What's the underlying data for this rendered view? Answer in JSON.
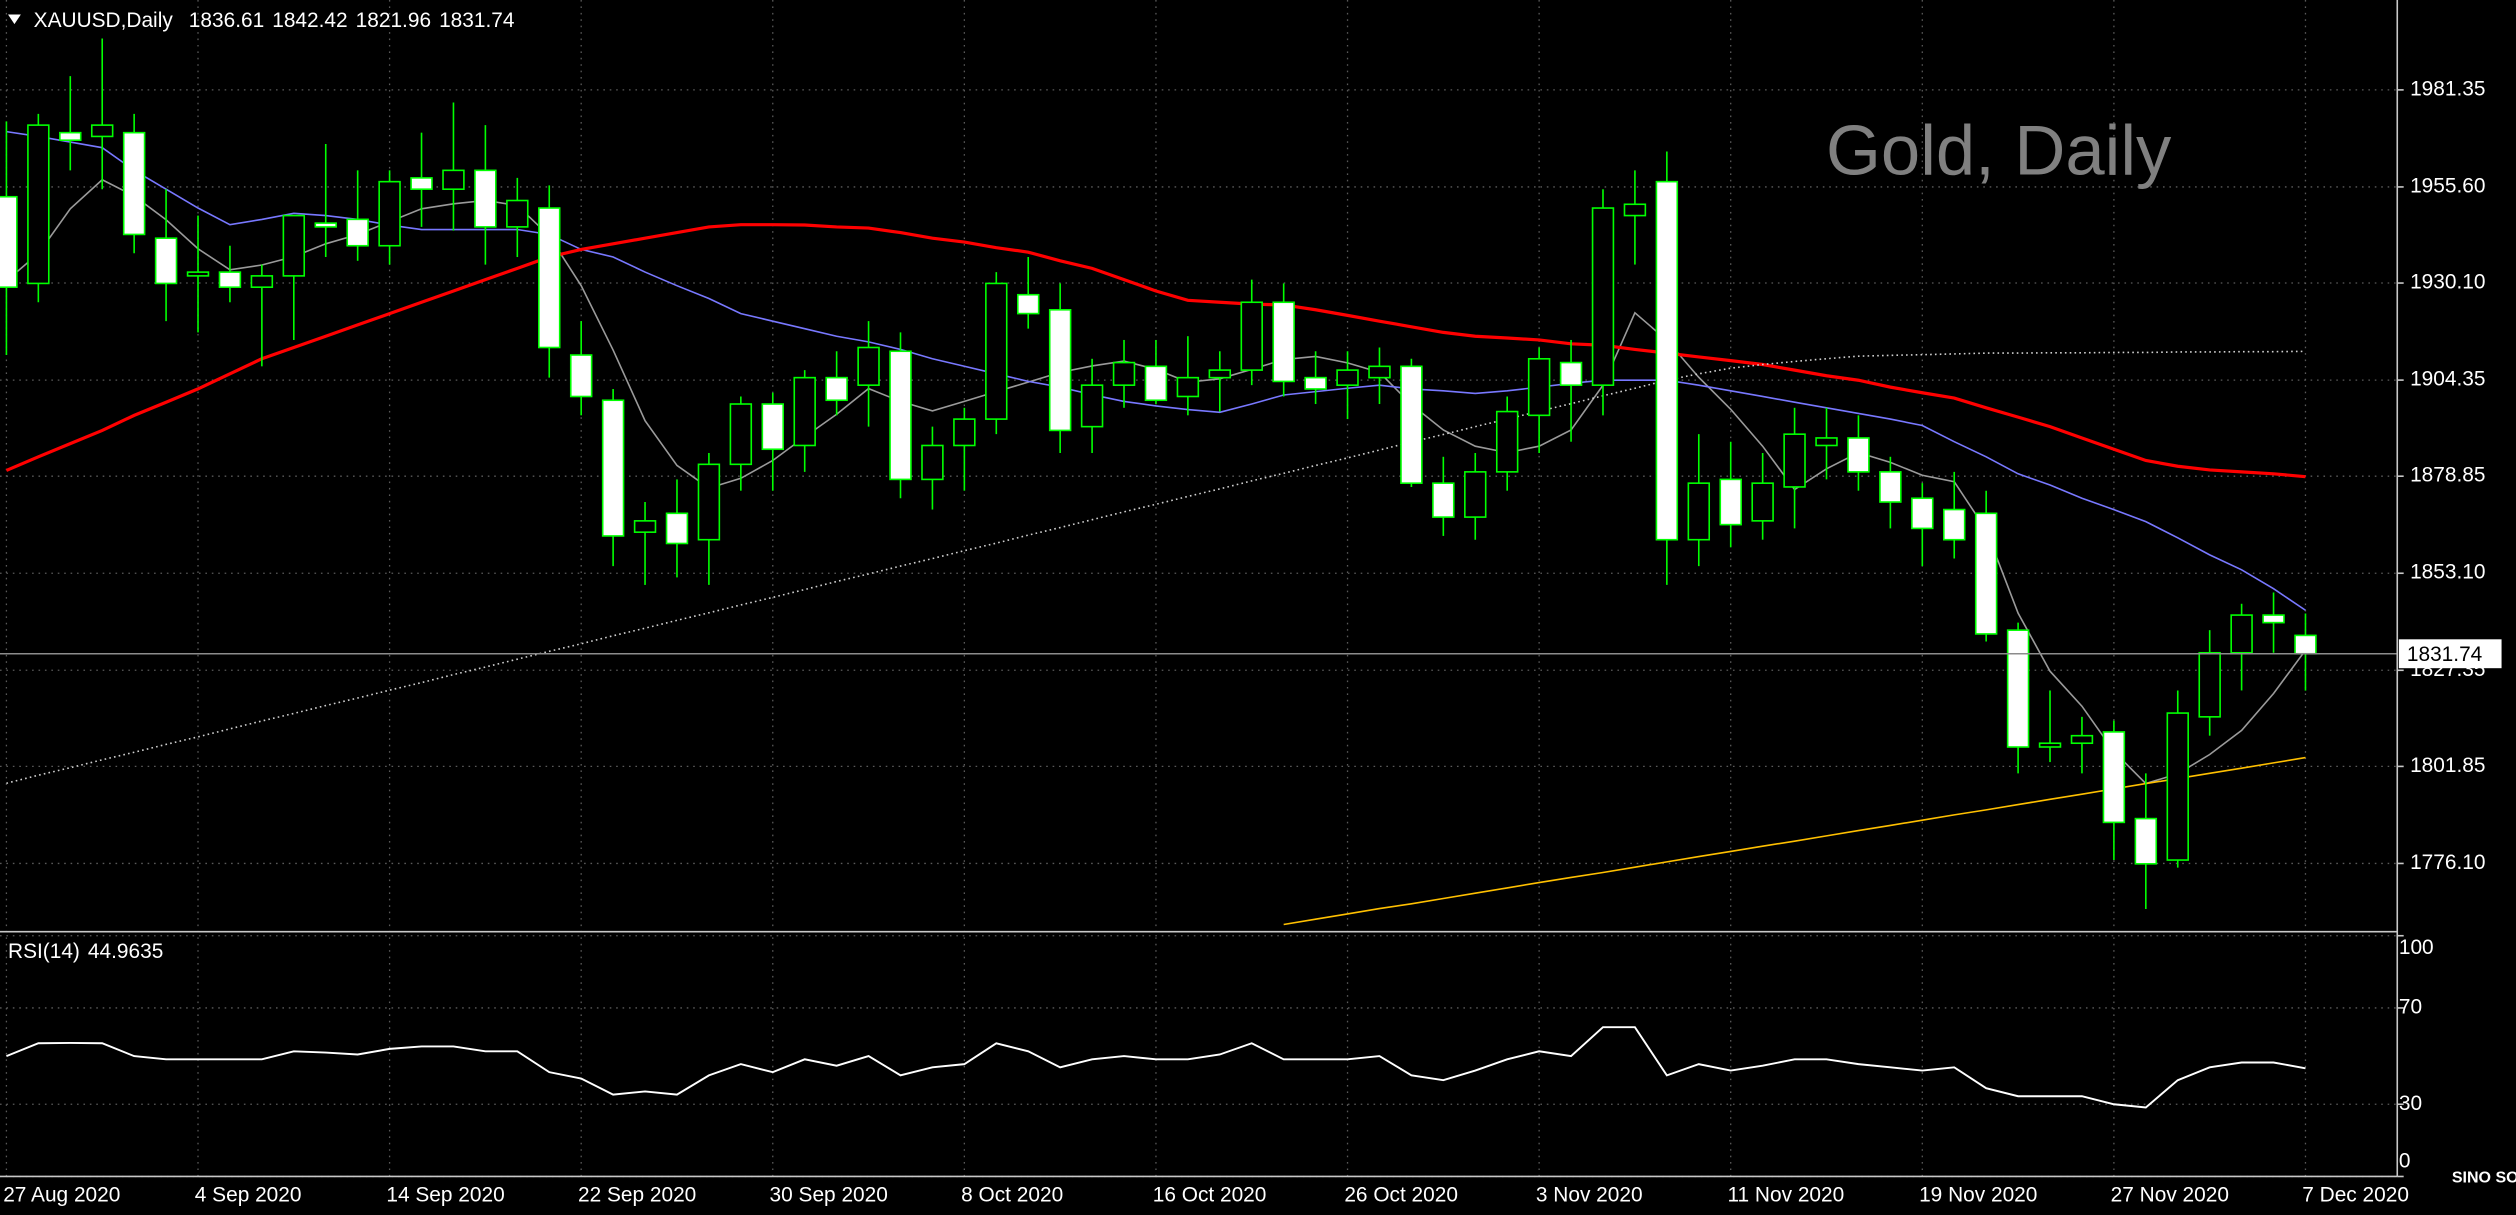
{
  "chart_data": [
    {
      "type": "candlestick",
      "title": "XAUUSD,Daily",
      "watermark": "Gold, Daily",
      "categories": [
        "27 Aug 2020",
        null,
        null,
        null,
        null,
        null,
        "4 Sep 2020",
        null,
        null,
        null,
        null,
        null,
        "14 Sep 2020",
        null,
        null,
        null,
        null,
        null,
        "22 Sep 2020",
        null,
        null,
        null,
        null,
        null,
        "30 Sep 2020",
        null,
        null,
        null,
        null,
        null,
        "8 Oct 2020",
        null,
        null,
        null,
        null,
        null,
        "16 Oct 2020",
        null,
        null,
        null,
        null,
        null,
        "26 Oct 2020",
        null,
        null,
        null,
        null,
        null,
        "3 Nov 2020",
        null,
        null,
        null,
        null,
        null,
        "11 Nov 2020",
        null,
        null,
        null,
        null,
        null,
        "19 Nov 2020",
        null,
        null,
        null,
        null,
        null,
        "27 Nov 2020",
        null,
        null,
        null,
        null,
        null,
        "7 Dec 2020"
      ],
      "open": [
        1953,
        1930,
        1970,
        1969,
        1970,
        1942,
        1932,
        1933,
        1929,
        1932,
        1946,
        1947,
        1940,
        1958,
        1955,
        1960,
        1945,
        1950,
        1911,
        1899,
        1864,
        1869,
        1862,
        1882,
        1898,
        1887,
        1905,
        1903,
        1912,
        1878,
        1887,
        1894,
        1927,
        1923,
        1892,
        1903,
        1908,
        1900,
        1905,
        1907,
        1925,
        1905,
        1903,
        1905,
        1908,
        1877,
        1868,
        1880,
        1895,
        1909,
        1903,
        1948,
        1957,
        1862,
        1878,
        1867,
        1876,
        1887,
        1889,
        1880,
        1873,
        1870,
        1869,
        1838,
        1807,
        1808,
        1811,
        1788,
        1777,
        1815,
        1832,
        1842,
        1836.61
      ],
      "high": [
        1973,
        1975,
        1985,
        1995,
        1975,
        1955,
        1948,
        1940,
        1935,
        1948,
        1967,
        1960,
        1960,
        1970,
        1978,
        1972,
        1958,
        1956,
        1920,
        1902,
        1872,
        1878,
        1885,
        1900,
        1901,
        1907,
        1912,
        1920,
        1917,
        1892,
        1897,
        1933,
        1937,
        1930,
        1910,
        1915,
        1915,
        1916,
        1912,
        1931,
        1930,
        1912,
        1912,
        1913,
        1910,
        1884,
        1885,
        1900,
        1913,
        1915,
        1955,
        1960,
        1965,
        1890,
        1888,
        1885,
        1897,
        1897,
        1895,
        1884,
        1877,
        1880,
        1875,
        1840,
        1822,
        1815,
        1814,
        1800,
        1822,
        1838,
        1845,
        1848,
        1842.42
      ],
      "low": [
        1911,
        1925,
        1960,
        1955,
        1938,
        1920,
        1917,
        1925,
        1908,
        1915,
        1937,
        1936,
        1935,
        1945,
        1944,
        1935,
        1937,
        1905,
        1895,
        1855,
        1850,
        1852,
        1850,
        1875,
        1875,
        1880,
        1895,
        1892,
        1873,
        1870,
        1875,
        1890,
        1918,
        1885,
        1885,
        1897,
        1898,
        1895,
        1896,
        1903,
        1900,
        1898,
        1894,
        1898,
        1876,
        1863,
        1862,
        1875,
        1885,
        1888,
        1895,
        1935,
        1850,
        1855,
        1860,
        1862,
        1865,
        1878,
        1875,
        1865,
        1855,
        1857,
        1835,
        1800,
        1803,
        1800,
        1777,
        1764,
        1775,
        1810,
        1822,
        1832,
        1821.96
      ],
      "close": [
        1929,
        1972,
        1968,
        1972,
        1943,
        1930,
        1933,
        1929,
        1932,
        1948,
        1945,
        1940,
        1957,
        1955,
        1960,
        1945,
        1952,
        1913,
        1900,
        1863,
        1867,
        1861,
        1882,
        1898,
        1886,
        1905,
        1899,
        1913,
        1878,
        1887,
        1894,
        1930,
        1922,
        1891,
        1903,
        1909,
        1899,
        1905,
        1907,
        1925,
        1904,
        1902,
        1907,
        1908,
        1877,
        1868,
        1880,
        1896,
        1910,
        1903,
        1950,
        1951,
        1862,
        1877,
        1866,
        1877,
        1890,
        1889,
        1880,
        1872,
        1865,
        1862,
        1837,
        1807,
        1808,
        1810,
        1787,
        1776,
        1816,
        1832,
        1842,
        1840,
        1831.74
      ],
      "up_color": "#000000",
      "down_color": "#ffffff",
      "wick_color": "#00ff00",
      "lines": [
        {
          "color": "#9a9a9a",
          "style": "solid",
          "values": [
            1930.7,
            1937.9,
            1949.8,
            1957.5,
            1953.2,
            1946.9,
            1939.2,
            1933.6,
            1934.9,
            1937.1,
            1940.5,
            1943,
            1946.4,
            1949.8,
            1951.1,
            1952,
            1950.7,
            1942.6,
            1929.4,
            1912.3,
            1893.6,
            1881.7,
            1875.7,
            1878.3,
            1883,
            1889.3,
            1895.3,
            1902.1,
            1898.7,
            1896.2,
            1898.7,
            1901.3,
            1903.8,
            1906.4,
            1908.1,
            1909.4,
            1907.2,
            1903.8,
            1904.7,
            1907.2,
            1909.8,
            1910.6,
            1908.9,
            1906.4,
            1897.9,
            1891.1,
            1886.8,
            1885.1,
            1886.8,
            1891.1,
            1903,
            1922.2,
            1914.9,
            1905.1,
            1896.6,
            1886.8,
            1875.3,
            1880.8,
            1885.1,
            1882.5,
            1879.1,
            1877.4,
            1864.6,
            1842.5,
            1827.1,
            1817.8,
            1805.8,
            1797.3,
            1799.9,
            1805,
            1811.4,
            1821.2,
            1832.7
          ]
        },
        {
          "color": "#7878ff",
          "style": "solid",
          "values": [
            1970.3,
            1969,
            1967.5,
            1966,
            1960,
            1955,
            1950,
            1945.6,
            1947,
            1948.6,
            1948,
            1947,
            1945.5,
            1944.3,
            1944.3,
            1944.3,
            1944.3,
            1943,
            1939,
            1937,
            1933,
            1929.4,
            1926,
            1922,
            1920,
            1918,
            1916,
            1914.5,
            1912.5,
            1910,
            1908,
            1906,
            1904,
            1902.5,
            1900.5,
            1898.7,
            1897.5,
            1896.5,
            1895.8,
            1898,
            1900.4,
            1901.3,
            1902.2,
            1903,
            1902,
            1901.5,
            1900.8,
            1901.5,
            1902.5,
            1903.5,
            1904.3,
            1904.3,
            1904.3,
            1903,
            1901.5,
            1900,
            1898.5,
            1897,
            1895.5,
            1894,
            1892.3,
            1888,
            1884,
            1879.5,
            1876.5,
            1873,
            1870,
            1866.8,
            1862.5,
            1858,
            1854,
            1849,
            1843.3
          ]
        },
        {
          "color": "#ff0000",
          "style": "thick",
          "values": [
            1880.4,
            1884,
            1887.5,
            1891,
            1895,
            1898.5,
            1902,
            1906,
            1910,
            1913,
            1916,
            1919,
            1922,
            1925,
            1928,
            1931,
            1934,
            1937,
            1939,
            1940.5,
            1942,
            1943.5,
            1945,
            1945.6,
            1945.6,
            1945.5,
            1945,
            1944.7,
            1943.5,
            1942,
            1941,
            1939.5,
            1938.3,
            1936,
            1934,
            1931,
            1928,
            1925.5,
            1925,
            1924.5,
            1924.3,
            1923,
            1921.5,
            1920,
            1918.5,
            1917,
            1916,
            1915.5,
            1915,
            1914,
            1913.6,
            1912.5,
            1911.5,
            1910.5,
            1909.5,
            1908.5,
            1907,
            1905.5,
            1904.3,
            1902.5,
            1901,
            1899.6,
            1897,
            1894.5,
            1892,
            1889,
            1886,
            1883,
            1881.5,
            1880.5,
            1880,
            1879.5,
            1878.7
          ]
        },
        {
          "color": "#d0d0d0",
          "style": "dotted",
          "values": [
            1797.4,
            1799.5,
            1801.5,
            1803.6,
            1805.6,
            1807.7,
            1809.7,
            1811.8,
            1813.9,
            1815.9,
            1818,
            1820,
            1822.1,
            1824.1,
            1826.2,
            1828.2,
            1830.3,
            1832.4,
            1834.4,
            1836.5,
            1838.5,
            1840.6,
            1842.6,
            1844.7,
            1846.7,
            1848.8,
            1850.9,
            1852.9,
            1855,
            1857,
            1859.1,
            1861.1,
            1863.2,
            1865.2,
            1867.3,
            1869.4,
            1871.4,
            1873.5,
            1875.5,
            1877.6,
            1879.6,
            1881.7,
            1883.7,
            1885.8,
            1887.9,
            1889.9,
            1892,
            1894,
            1896.1,
            1898.1,
            1900.2,
            1902.2,
            1904.3,
            1906,
            1907.5,
            1908.5,
            1909.3,
            1910,
            1910.7,
            1910.9,
            1911.1,
            1911.3,
            1911.5,
            1911.5,
            1911.6,
            1911.6,
            1911.7,
            1911.7,
            1911.8,
            1911.8,
            1911.9,
            1911.9,
            1912
          ]
        },
        {
          "color": "#ffc000",
          "style": "solid",
          "values": [
            null,
            null,
            null,
            null,
            null,
            null,
            null,
            null,
            null,
            null,
            null,
            null,
            null,
            null,
            null,
            null,
            null,
            null,
            null,
            null,
            null,
            null,
            null,
            null,
            null,
            null,
            null,
            null,
            null,
            null,
            null,
            null,
            null,
            null,
            null,
            null,
            null,
            null,
            null,
            null,
            1759.9,
            1761.3,
            1762.7,
            1764.1,
            1765.4,
            1766.8,
            1768.2,
            1769.6,
            1771,
            1772.4,
            1773.7,
            1775.1,
            1776.5,
            1777.9,
            1779.3,
            1780.7,
            1782,
            1783.4,
            1784.8,
            1786.2,
            1787.6,
            1789,
            1790.3,
            1791.7,
            1793.1,
            1794.5,
            1795.9,
            1797.3,
            1798.6,
            1800,
            1801.4,
            1802.8,
            1804.2
          ]
        }
      ],
      "ylim": [
        1758.2,
        2005.2
      ],
      "yticks": [
        {
          "value": 1776.1,
          "label": "1776.10"
        },
        1801.85,
        1827.35,
        {
          "value": 1853.1,
          "label": "1853.10"
        },
        1878.85,
        1904.35,
        {
          "value": 1930.1,
          "label": "1930.10"
        },
        {
          "value": 1955.6,
          "label": "1955.60"
        },
        1981.35
      ],
      "grid": true,
      "logo": "SINO SOUND"
    },
    {
      "type": "line",
      "title": "RSI(14)",
      "color": "#ffffff",
      "values": [
        50,
        55.3,
        55.5,
        55.3,
        50,
        48.7,
        48.7,
        48.7,
        48.7,
        52,
        51.5,
        50.7,
        53,
        54,
        54,
        52,
        52,
        43.3,
        40.7,
        34,
        35.3,
        34,
        42,
        46.7,
        43.3,
        48.7,
        46,
        50,
        42,
        45.3,
        46.7,
        55.3,
        52,
        45.3,
        48.7,
        50,
        48.7,
        48.7,
        50.7,
        55.3,
        48.7,
        48.7,
        48.7,
        50,
        42,
        40,
        44,
        48.7,
        52,
        50,
        62,
        62,
        42,
        46.7,
        44,
        46,
        48.7,
        48.7,
        46.7,
        45.3,
        44,
        45.3,
        36.7,
        33.3,
        33.3,
        33.3,
        30,
        28.7,
        40,
        45.3,
        47.3,
        47.3,
        44.9635
      ],
      "ylim": [
        0,
        100
      ],
      "yticks": [
        0,
        30,
        70,
        100
      ],
      "grid": true
    }
  ]
}
